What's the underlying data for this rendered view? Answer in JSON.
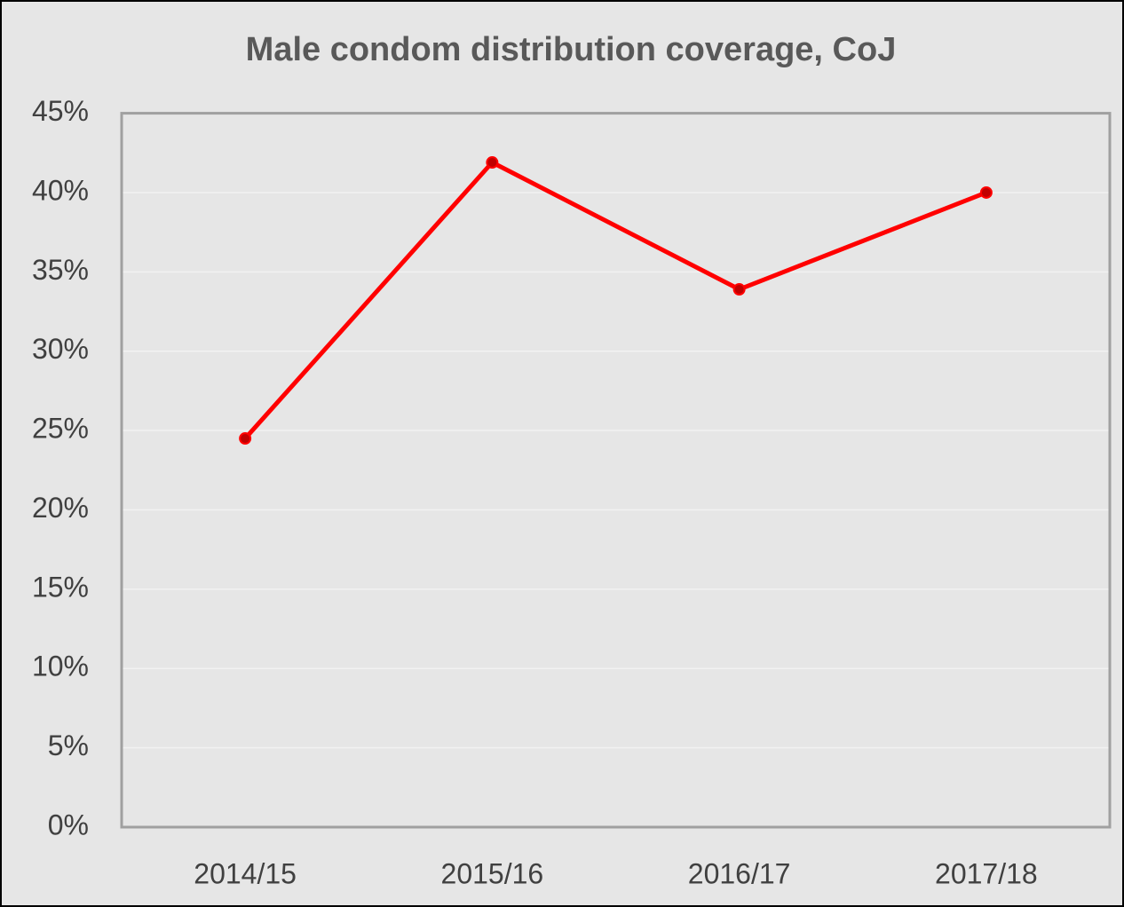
{
  "chart_data": {
    "type": "line",
    "title": "Male condom distribution coverage, CoJ",
    "categories": [
      "2014/15",
      "2015/16",
      "2016/17",
      "2017/18"
    ],
    "series": [
      {
        "name": "Male condom distribution coverage",
        "color": "#ff0000",
        "values": [
          24.5,
          41.9,
          33.9,
          40.0
        ]
      }
    ],
    "ylim": [
      0,
      45
    ],
    "yticks": [
      {
        "value": 0,
        "label": "0%"
      },
      {
        "value": 5,
        "label": "5%"
      },
      {
        "value": 10,
        "label": "10%"
      },
      {
        "value": 15,
        "label": "15%"
      },
      {
        "value": 20,
        "label": "20%"
      },
      {
        "value": 25,
        "label": "25%"
      },
      {
        "value": 30,
        "label": "30%"
      },
      {
        "value": 35,
        "label": "35%"
      },
      {
        "value": 40,
        "label": "40%"
      },
      {
        "value": 45,
        "label": "45%"
      }
    ],
    "grid": true
  }
}
